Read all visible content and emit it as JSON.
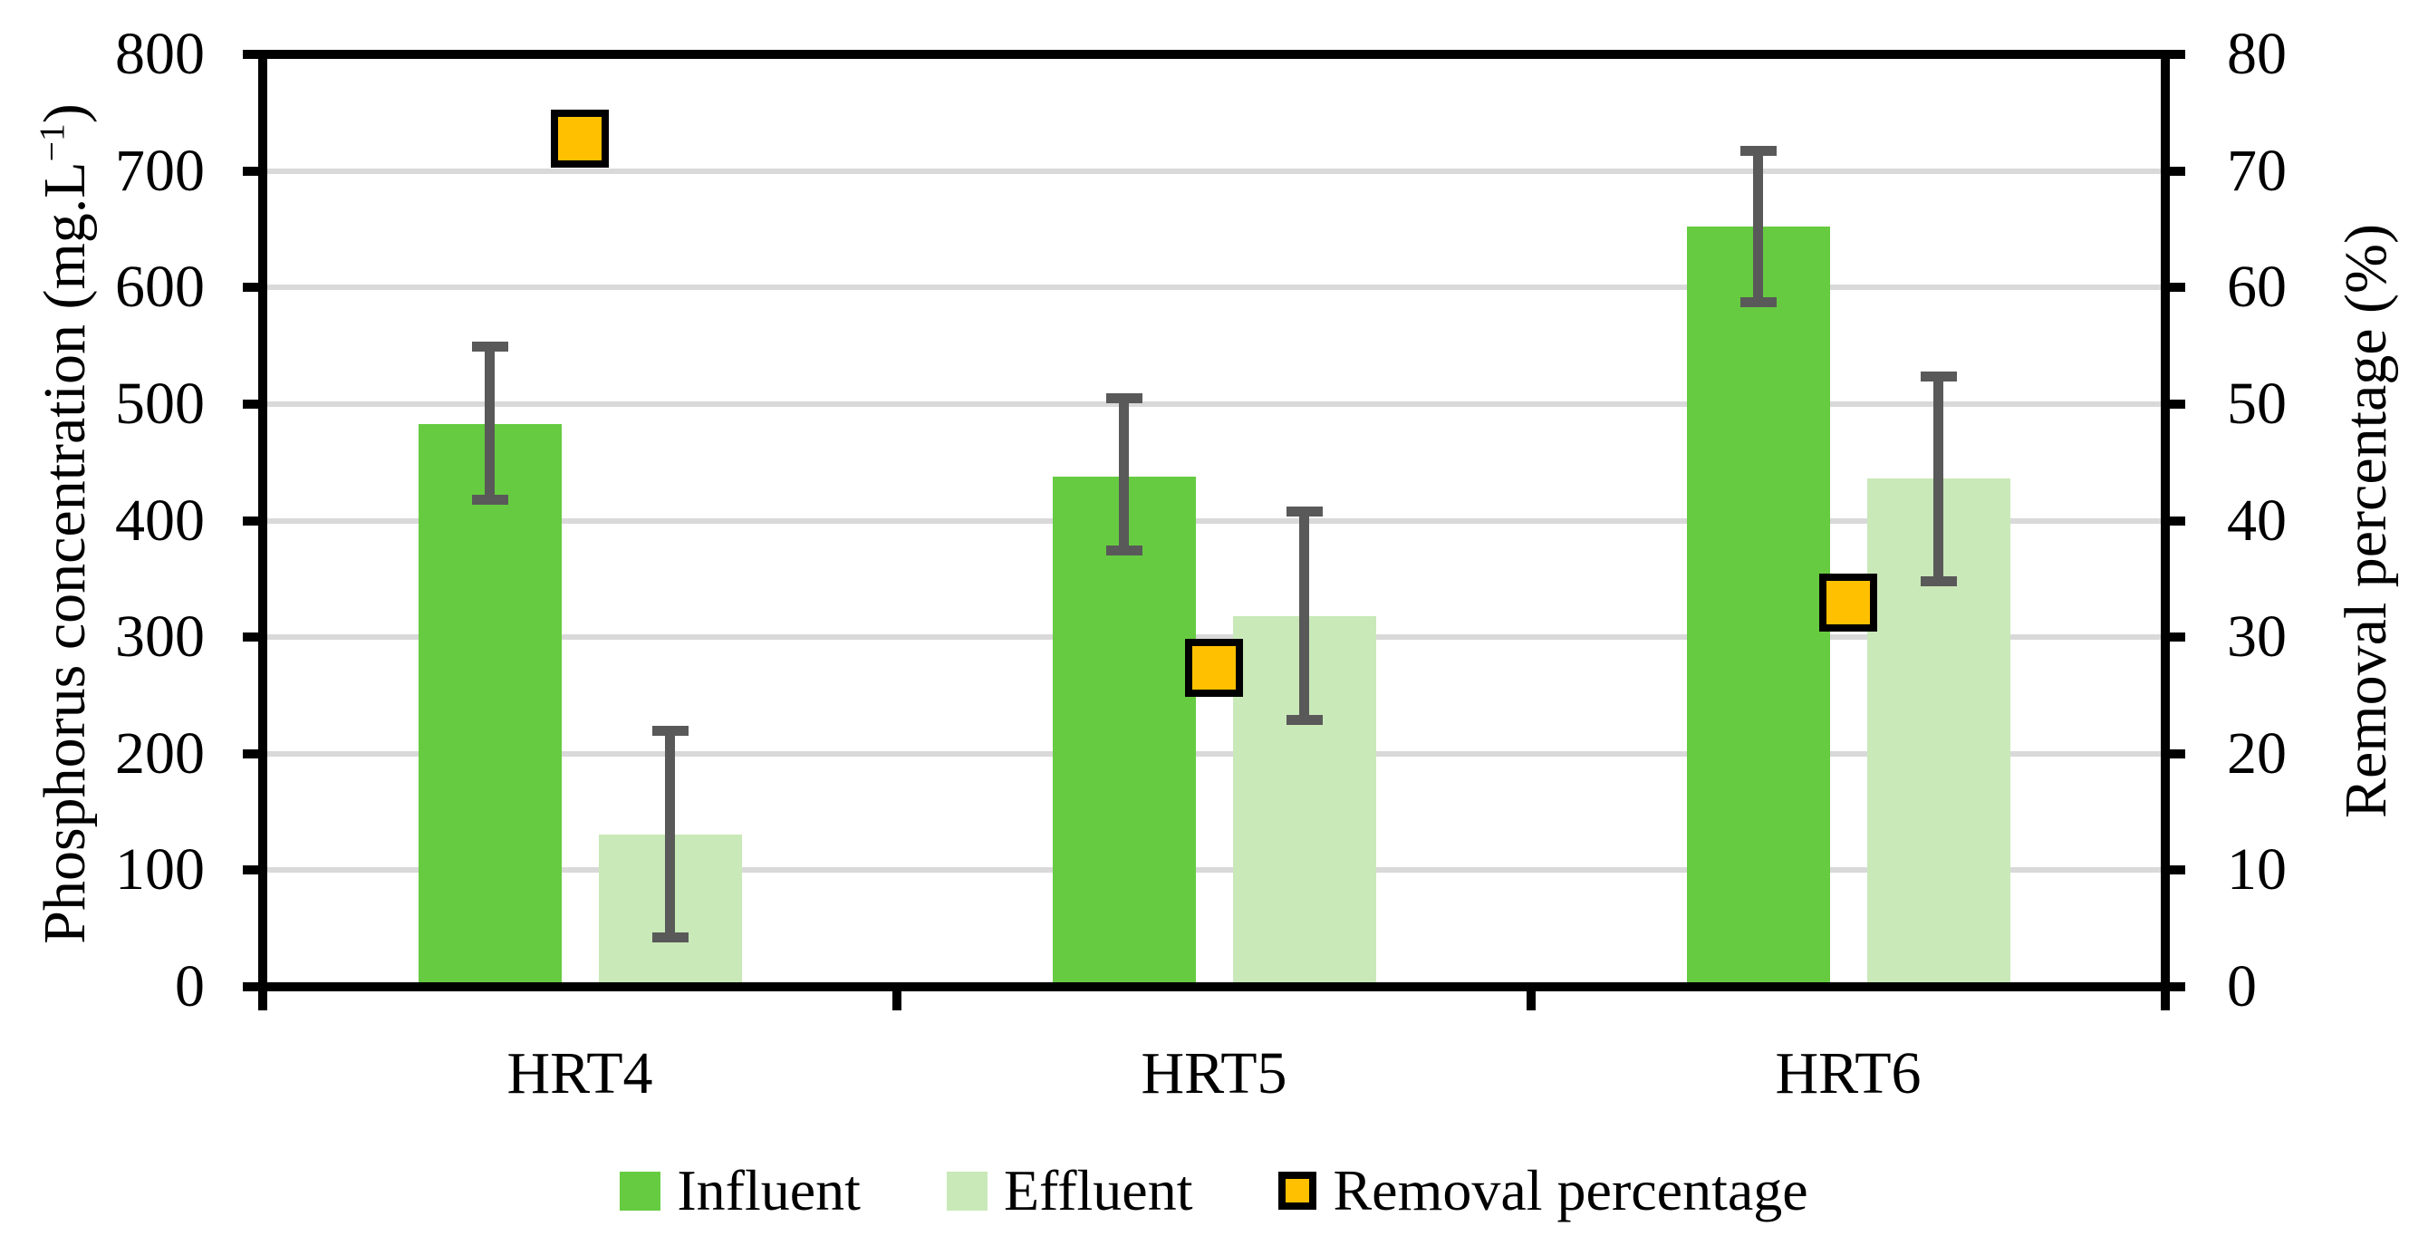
{
  "chart_data": {
    "type": "bar",
    "title": "",
    "categories": [
      "HRT4",
      "HRT5",
      "HRT6"
    ],
    "series": [
      {
        "name": "Influent",
        "type": "bar",
        "axis": "left",
        "color": "#66CB40",
        "values": [
          483,
          438,
          652
        ],
        "error_low": [
          418,
          374,
          587
        ],
        "error_high": [
          549,
          505,
          717
        ]
      },
      {
        "name": "Effluent",
        "type": "bar",
        "axis": "left",
        "color": "#C9E9B8",
        "values": [
          131,
          318,
          436
        ],
        "error_low": [
          42,
          229,
          348
        ],
        "error_high": [
          220,
          408,
          524
        ]
      },
      {
        "name": "Removal percentage",
        "type": "scatter",
        "axis": "right",
        "color": "#FFC000",
        "marker_border": "#000000",
        "values": [
          72.8,
          27.4,
          33.0
        ]
      }
    ],
    "left_axis": {
      "label_prefix": "Phosphorus concentration (mg.L",
      "label_sup": "−1",
      "label_suffix": ")",
      "min": 0,
      "max": 800,
      "step": 100,
      "ticks": [
        "0",
        "100",
        "200",
        "300",
        "400",
        "500",
        "600",
        "700",
        "800"
      ]
    },
    "right_axis": {
      "label": "Removal percentage (%)",
      "min": 0,
      "max": 80,
      "step": 10,
      "ticks": [
        "0",
        "10",
        "20",
        "30",
        "40",
        "50",
        "60",
        "70",
        "80"
      ]
    },
    "grid": true,
    "legend_position": "bottom",
    "colors": {
      "gridline": "#D9D9D9",
      "error_bar": "#595959",
      "axis": "#000000",
      "background": "#FFFFFF"
    }
  }
}
